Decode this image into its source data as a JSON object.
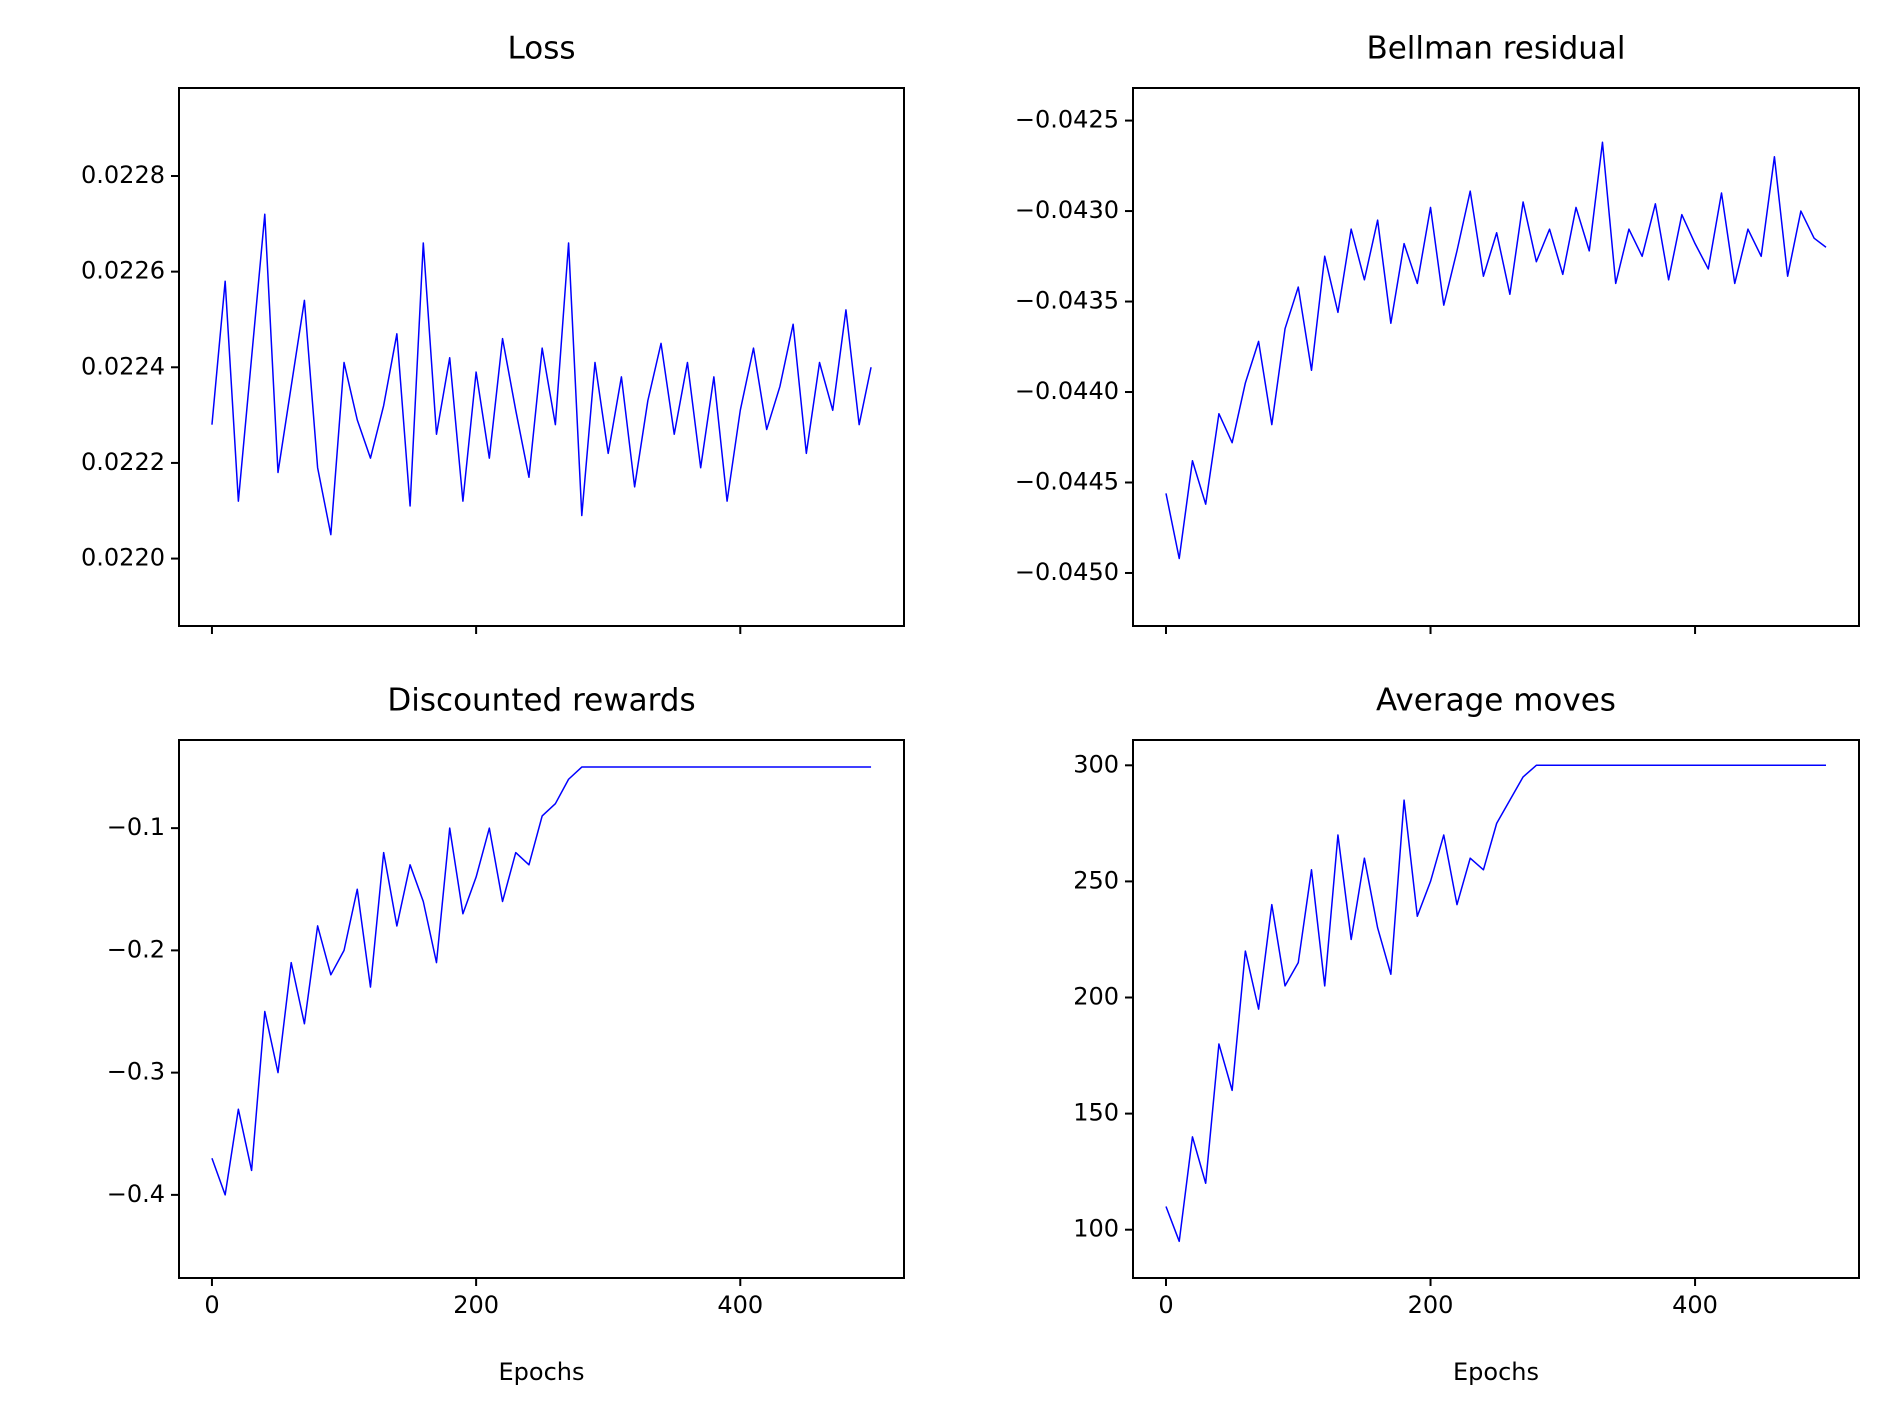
{
  "chart_data": [
    {
      "type": "line",
      "title": "Loss",
      "x": [
        0,
        10,
        20,
        30,
        40,
        50,
        60,
        70,
        80,
        90,
        100,
        110,
        120,
        130,
        140,
        150,
        160,
        170,
        180,
        190,
        200,
        210,
        220,
        230,
        240,
        250,
        260,
        270,
        280,
        290,
        300,
        310,
        320,
        330,
        340,
        350,
        360,
        370,
        380,
        390,
        400,
        410,
        420,
        430,
        440,
        450,
        460,
        470,
        480,
        490,
        499
      ],
      "series": [
        {
          "color": "#0000ff",
          "values": [
            0.02228,
            0.02258,
            0.02212,
            0.02242,
            0.02272,
            0.02218,
            0.02236,
            0.02254,
            0.02219,
            0.02205,
            0.02241,
            0.02229,
            0.02221,
            0.02232,
            0.02247,
            0.02211,
            0.02266,
            0.02226,
            0.02242,
            0.02212,
            0.02239,
            0.02221,
            0.02246,
            0.02231,
            0.02217,
            0.02244,
            0.02228,
            0.02266,
            0.02209,
            0.02241,
            0.02222,
            0.02238,
            0.02215,
            0.02233,
            0.02245,
            0.02226,
            0.02241,
            0.02219,
            0.02238,
            0.02212,
            0.02231,
            0.02244,
            0.02227,
            0.02236,
            0.02249,
            0.02222,
            0.02241,
            0.02231,
            0.02252,
            0.02228,
            0.0224
          ]
        }
      ],
      "xlim": [
        -24.95,
        523.95
      ],
      "xticks": [
        0,
        200,
        400
      ],
      "ylim": [
        0.021859,
        0.022984
      ],
      "yticks": [
        {
          "value": 0.022,
          "label": "0.0220"
        },
        {
          "value": 0.0222,
          "label": "0.0222"
        },
        {
          "value": 0.0224,
          "label": "0.0224"
        },
        {
          "value": 0.0226,
          "label": "0.0226"
        },
        {
          "value": 0.0228,
          "label": "0.0228"
        }
      ]
    },
    {
      "type": "line",
      "title": "Bellman residual",
      "x": [
        0,
        10,
        20,
        30,
        40,
        50,
        60,
        70,
        80,
        90,
        100,
        110,
        120,
        130,
        140,
        150,
        160,
        170,
        180,
        190,
        200,
        210,
        220,
        230,
        240,
        250,
        260,
        270,
        280,
        290,
        300,
        310,
        320,
        330,
        340,
        350,
        360,
        370,
        380,
        390,
        400,
        410,
        420,
        430,
        440,
        450,
        460,
        470,
        480,
        490,
        499
      ],
      "series": [
        {
          "color": "#0000ff",
          "values": [
            -0.04456,
            -0.04492,
            -0.04438,
            -0.04462,
            -0.04412,
            -0.04428,
            -0.04395,
            -0.04372,
            -0.04418,
            -0.04365,
            -0.04342,
            -0.04388,
            -0.04325,
            -0.04356,
            -0.0431,
            -0.04338,
            -0.04305,
            -0.04362,
            -0.04318,
            -0.0434,
            -0.04298,
            -0.04352,
            -0.04322,
            -0.04289,
            -0.04336,
            -0.04312,
            -0.04346,
            -0.04295,
            -0.04328,
            -0.0431,
            -0.04335,
            -0.04298,
            -0.04322,
            -0.04262,
            -0.0434,
            -0.0431,
            -0.04325,
            -0.04296,
            -0.04338,
            -0.04302,
            -0.04318,
            -0.04332,
            -0.0429,
            -0.0434,
            -0.0431,
            -0.04325,
            -0.0427,
            -0.04336,
            -0.043,
            -0.04315,
            -0.0432
          ]
        }
      ],
      "xlim": [
        -24.95,
        523.95
      ],
      "xticks": [
        0,
        200,
        400
      ],
      "ylim": [
        -0.045293,
        -0.04232
      ],
      "yticks": [
        {
          "value": -0.045,
          "label": "−0.0450"
        },
        {
          "value": -0.0445,
          "label": "−0.0445"
        },
        {
          "value": -0.044,
          "label": "−0.0440"
        },
        {
          "value": -0.0435,
          "label": "−0.0435"
        },
        {
          "value": -0.043,
          "label": "−0.0430"
        },
        {
          "value": -0.0425,
          "label": "−0.0425"
        }
      ]
    },
    {
      "type": "line",
      "title": "Discounted rewards",
      "xlabel": "Epochs",
      "x": [
        0,
        10,
        20,
        30,
        40,
        50,
        60,
        70,
        80,
        90,
        100,
        110,
        120,
        130,
        140,
        150,
        160,
        170,
        180,
        190,
        200,
        210,
        220,
        230,
        240,
        250,
        260,
        270,
        280,
        290,
        300,
        310,
        320,
        330,
        340,
        350,
        360,
        370,
        380,
        390,
        400,
        410,
        420,
        430,
        440,
        450,
        460,
        470,
        480,
        490,
        499
      ],
      "series": [
        {
          "color": "#0000ff",
          "values": [
            -0.37,
            -0.4,
            -0.33,
            -0.38,
            -0.25,
            -0.3,
            -0.21,
            -0.26,
            -0.18,
            -0.22,
            -0.2,
            -0.15,
            -0.23,
            -0.12,
            -0.18,
            -0.13,
            -0.16,
            -0.21,
            -0.1,
            -0.17,
            -0.14,
            -0.1,
            -0.16,
            -0.12,
            -0.13,
            -0.09,
            -0.08,
            -0.06,
            -0.05,
            -0.05,
            -0.05,
            -0.05,
            -0.05,
            -0.05,
            -0.05,
            -0.05,
            -0.05,
            -0.05,
            -0.05,
            -0.05,
            -0.05,
            -0.05,
            -0.05,
            -0.05,
            -0.05,
            -0.05,
            -0.05,
            -0.05,
            -0.05,
            -0.05,
            -0.05
          ]
        }
      ],
      "xlim": [
        -24.95,
        523.95
      ],
      "xticks": [
        0,
        200,
        400
      ],
      "ylim": [
        -0.468,
        -0.0279
      ],
      "yticks": [
        {
          "value": -0.4,
          "label": "−0.4"
        },
        {
          "value": -0.3,
          "label": "−0.3"
        },
        {
          "value": -0.2,
          "label": "−0.2"
        },
        {
          "value": -0.1,
          "label": "−0.1"
        }
      ]
    },
    {
      "type": "line",
      "title": "Average moves",
      "xlabel": "Epochs",
      "x": [
        0,
        10,
        20,
        30,
        40,
        50,
        60,
        70,
        80,
        90,
        100,
        110,
        120,
        130,
        140,
        150,
        160,
        170,
        180,
        190,
        200,
        210,
        220,
        230,
        240,
        250,
        260,
        270,
        280,
        290,
        300,
        310,
        320,
        330,
        340,
        350,
        360,
        370,
        380,
        390,
        400,
        410,
        420,
        430,
        440,
        450,
        460,
        470,
        480,
        490,
        499
      ],
      "series": [
        {
          "color": "#0000ff",
          "values": [
            110,
            95,
            140,
            120,
            180,
            160,
            220,
            195,
            240,
            205,
            215,
            255,
            205,
            270,
            225,
            260,
            230,
            210,
            285,
            235,
            250,
            270,
            240,
            260,
            255,
            275,
            285,
            295,
            300,
            300,
            300,
            300,
            300,
            300,
            300,
            300,
            300,
            300,
            300,
            300,
            300,
            300,
            300,
            300,
            300,
            300,
            300,
            300,
            300,
            300,
            300
          ]
        }
      ],
      "xlim": [
        -24.95,
        523.95
      ],
      "xticks": [
        0,
        200,
        400
      ],
      "ylim": [
        79.2,
        310.9
      ],
      "yticks": [
        100,
        150,
        200,
        250,
        300
      ]
    }
  ]
}
